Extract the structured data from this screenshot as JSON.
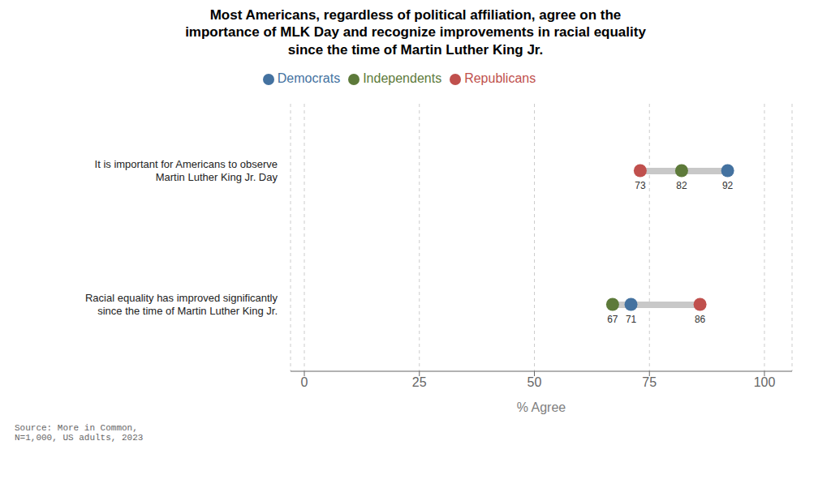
{
  "chart_data": {
    "type": "dumbbell",
    "title": "Most Americans, regardless of political affiliation, agree on the\nimportance of MLK Day and recognize improvements in racial equality\nsince the time of Martin Luther King Jr.",
    "orientation": "horizontal",
    "categories": [
      "It is important for Americans to observe\nMartin Luther King Jr. Day",
      "Racial equality has improved significantly\nsince the time of Martin Luther King Jr."
    ],
    "series": [
      {
        "name": "Republicans",
        "color": "#C0504D",
        "values": [
          73,
          86
        ]
      },
      {
        "name": "Independents",
        "color": "#5D7A3A",
        "values": [
          82,
          67
        ]
      },
      {
        "name": "Democrats",
        "color": "#4472A0",
        "values": [
          92,
          71
        ]
      }
    ],
    "color": "#C8C8C8",
    "x_label": "% Agree",
    "xlim": [
      -3,
      106
    ],
    "xticks": [
      0,
      25,
      50,
      75,
      100
    ],
    "grid": true,
    "legend": "top",
    "data_labels": true,
    "annotations": [
      "Source: More in Common,\nN=1,000, US adults, 2023"
    ]
  }
}
